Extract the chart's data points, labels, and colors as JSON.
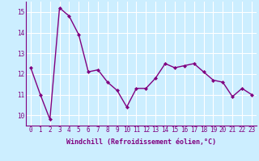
{
  "x": [
    0,
    1,
    2,
    3,
    4,
    5,
    6,
    7,
    8,
    9,
    10,
    11,
    12,
    13,
    14,
    15,
    16,
    17,
    18,
    19,
    20,
    21,
    22,
    23
  ],
  "y": [
    12.3,
    11.0,
    9.8,
    15.2,
    14.8,
    13.9,
    12.1,
    12.2,
    11.6,
    11.2,
    10.4,
    11.3,
    11.3,
    11.8,
    12.5,
    12.3,
    12.4,
    12.5,
    12.1,
    11.7,
    11.6,
    10.9,
    11.3,
    11.0
  ],
  "xlabel": "Windchill (Refroidissement éolien,°C)",
  "xlim": [
    -0.5,
    23.5
  ],
  "ylim": [
    9.5,
    15.5
  ],
  "yticks": [
    10,
    11,
    12,
    13,
    14,
    15
  ],
  "xticks": [
    0,
    1,
    2,
    3,
    4,
    5,
    6,
    7,
    8,
    9,
    10,
    11,
    12,
    13,
    14,
    15,
    16,
    17,
    18,
    19,
    20,
    21,
    22,
    23
  ],
  "line_color": "#800080",
  "marker_color": "#800080",
  "bg_color": "#cceeff",
  "grid_color": "#ffffff",
  "marker": "D",
  "marker_size": 2.0,
  "line_width": 1.0,
  "tick_fontsize": 5.5,
  "xlabel_fontsize": 6.0
}
